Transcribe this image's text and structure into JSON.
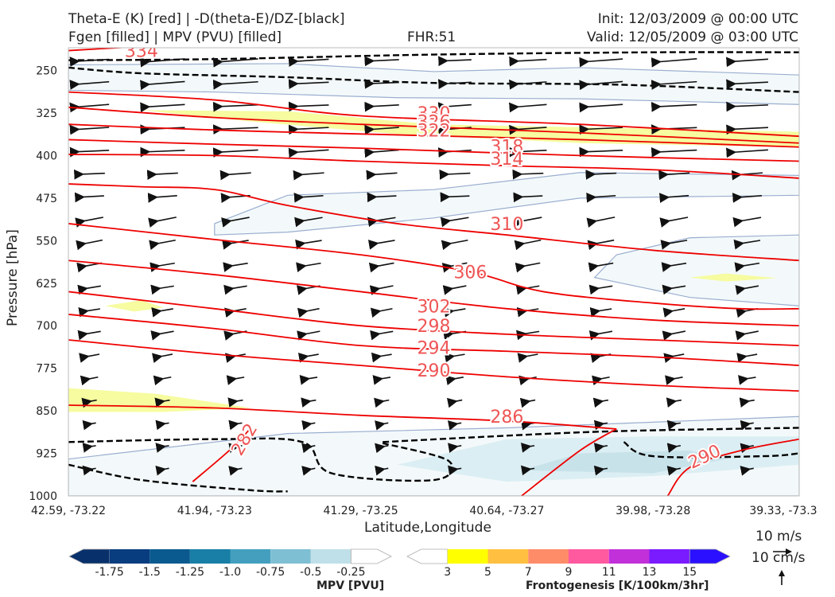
{
  "header": {
    "title_left_1": "Theta-E (K) [red] | -D(theta-E)/DZ-[black]",
    "title_left_2": "Fgen [filled] | MPV (PVU) [filled]",
    "fhr": "FHR:51",
    "init": "Init: 12/03/2009 @ 00:00 UTC",
    "valid": "Valid: 12/05/2009 @ 03:00 UTC"
  },
  "chart_data": {
    "type": "cross-section",
    "xlabel": "Latitude,Longitude",
    "ylabel": "Pressure [hPa]",
    "x_ticks": [
      "42.59, -73.22",
      "41.94, -73.23",
      "41.29, -73.25",
      "40.64, -73.27",
      "39.98, -73.28",
      "39.33, -73.3"
    ],
    "y_ticks": [
      250,
      325,
      400,
      475,
      550,
      625,
      700,
      775,
      850,
      925,
      1000
    ],
    "ylim": [
      1000,
      200
    ],
    "theta_e_contours": [
      {
        "label": "334",
        "points": [
          [
            0.0,
            215
          ],
          [
            0.2,
            200
          ]
        ]
      },
      {
        "label": "330",
        "points": [
          [
            0.0,
            288
          ],
          [
            0.2,
            302
          ],
          [
            0.4,
            330
          ],
          [
            0.7,
            345
          ],
          [
            1.0,
            366
          ]
        ]
      },
      {
        "label": "326",
        "points": [
          [
            0.0,
            315
          ],
          [
            0.2,
            333
          ],
          [
            0.4,
            345
          ],
          [
            0.7,
            360
          ],
          [
            1.0,
            378
          ]
        ]
      },
      {
        "label": "322",
        "points": [
          [
            0.0,
            345
          ],
          [
            0.2,
            355
          ],
          [
            0.4,
            362
          ],
          [
            0.7,
            372
          ],
          [
            1.0,
            385
          ]
        ]
      },
      {
        "label": "318",
        "points": [
          [
            0.0,
            372
          ],
          [
            0.2,
            380
          ],
          [
            0.4,
            387
          ],
          [
            0.7,
            400
          ],
          [
            1.0,
            410
          ]
        ]
      },
      {
        "label": "314",
        "points": [
          [
            0.0,
            398
          ],
          [
            0.2,
            400
          ],
          [
            0.4,
            410
          ],
          [
            0.6,
            418
          ],
          [
            0.8,
            425
          ],
          [
            1.0,
            440
          ]
        ]
      },
      {
        "label": "310",
        "points": [
          [
            0.0,
            450
          ],
          [
            0.1,
            455
          ],
          [
            0.2,
            460
          ],
          [
            0.3,
            488
          ],
          [
            0.45,
            520
          ],
          [
            0.6,
            540
          ],
          [
            0.8,
            567
          ],
          [
            1.0,
            585
          ]
        ]
      },
      {
        "label": "306",
        "points": [
          [
            0.0,
            520
          ],
          [
            0.2,
            548
          ],
          [
            0.4,
            575
          ],
          [
            0.55,
            605
          ],
          [
            0.65,
            640
          ],
          [
            0.8,
            660
          ],
          [
            0.92,
            670
          ],
          [
            1.0,
            670
          ]
        ]
      },
      {
        "label": "302",
        "points": [
          [
            0.0,
            585
          ],
          [
            0.2,
            610
          ],
          [
            0.4,
            640
          ],
          [
            0.6,
            670
          ],
          [
            0.8,
            690
          ],
          [
            1.0,
            700
          ]
        ]
      },
      {
        "label": "298",
        "points": [
          [
            0.0,
            640
          ],
          [
            0.2,
            670
          ],
          [
            0.4,
            700
          ],
          [
            0.6,
            715
          ],
          [
            0.8,
            725
          ],
          [
            1.0,
            735
          ]
        ]
      },
      {
        "label": "294",
        "points": [
          [
            0.0,
            680
          ],
          [
            0.2,
            705
          ],
          [
            0.4,
            735
          ],
          [
            0.6,
            745
          ],
          [
            0.8,
            755
          ],
          [
            1.0,
            770
          ]
        ]
      },
      {
        "label": "290",
        "points": [
          [
            0.0,
            725
          ],
          [
            0.2,
            750
          ],
          [
            0.4,
            770
          ],
          [
            0.6,
            790
          ],
          [
            0.8,
            805
          ],
          [
            1.0,
            815
          ]
        ]
      },
      {
        "label": "286",
        "points": [
          [
            0.0,
            840
          ],
          [
            0.2,
            845
          ],
          [
            0.4,
            858
          ],
          [
            0.6,
            868
          ],
          [
            0.75,
            882
          ]
        ]
      },
      {
        "label": "282",
        "points": [
          [
            0.17,
            975
          ],
          [
            0.22,
            920
          ],
          [
            0.25,
            880
          ]
        ]
      },
      {
        "label": "290",
        "points": [
          [
            0.62,
            1000
          ],
          [
            0.7,
            920
          ],
          [
            0.75,
            882
          ]
        ]
      },
      {
        "label": "290",
        "points": [
          [
            0.82,
            1000
          ],
          [
            0.85,
            950
          ],
          [
            0.92,
            920
          ],
          [
            1.0,
            900
          ]
        ]
      }
    ],
    "mpv_colorbar": {
      "label": "MPV [PVU]",
      "ticks": [
        "-1.75",
        "-1.5",
        "-1.25",
        "-1.0",
        "-0.75",
        "-0.5",
        "-0.25"
      ],
      "colors": [
        "#08306b",
        "#083d7f",
        "#0a5a8f",
        "#1a7fa6",
        "#449fbf",
        "#7fbfd3",
        "#bfe0e8",
        "#ffffff"
      ]
    },
    "fgen_colorbar": {
      "label": "Frontogenesis [K/100km/3hr]",
      "ticks": [
        "3",
        "5",
        "7",
        "9",
        "11",
        "13",
        "15"
      ],
      "colors": [
        "#ffffff",
        "#ffff00",
        "#ffbf40",
        "#ff8c69",
        "#ff5aa0",
        "#c130d9",
        "#7a1aff",
        "#2a10ff"
      ]
    },
    "wind_key": {
      "horizontal": "10 m/s",
      "vertical": "10 cm/s"
    }
  }
}
